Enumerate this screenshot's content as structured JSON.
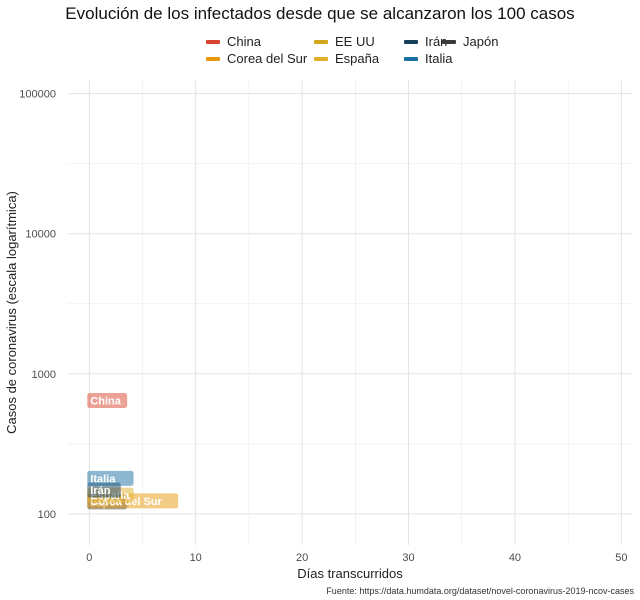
{
  "title": "Evolución de los infectados desde que se alcanzaron los 100 casos",
  "caption": "Fuente: https://data.humdata.org/dataset/novel-coronavirus-2019-ncov-cases",
  "colors": {
    "China": "#d9432f",
    "Corea del Sur": "#e69a0b",
    "EE UU": "#d4a61a",
    "España": "#e2b02b",
    "Irán": "#17405c",
    "Italia": "#1b6fa3",
    "Japón": "#3b3b3b"
  },
  "chart_data": {
    "type": "line",
    "title": "Evolución de los infectados desde que se alcanzaron los 100 casos",
    "xlabel": "Días transcurridos",
    "ylabel": "Casos de coronavirus (escala logarítmica)",
    "xlim": [
      -2,
      51
    ],
    "ylim": [
      60,
      125000
    ],
    "yscale": "log",
    "x_ticks": [
      "0",
      "10",
      "20",
      "30",
      "40",
      "50"
    ],
    "y_ticks": [
      "100",
      "1000",
      "10000",
      "100000"
    ],
    "grid": true,
    "legend_position": "top",
    "series": [
      {
        "name": "China",
        "labels": [
          {
            "text": "China",
            "x": 0,
            "y": 640
          }
        ]
      },
      {
        "name": "Corea del Sur",
        "labels": [
          {
            "text": "Corea del Sur",
            "x": 0,
            "y": 123
          }
        ]
      },
      {
        "name": "EE UU",
        "labels": []
      },
      {
        "name": "España",
        "labels": [
          {
            "text": "España",
            "x": 0,
            "y": 135
          }
        ]
      },
      {
        "name": "Irán",
        "labels": [
          {
            "text": "Irán",
            "x": 0,
            "y": 147
          }
        ]
      },
      {
        "name": "Italia",
        "labels": [
          {
            "text": "Italia",
            "x": 0,
            "y": 178
          }
        ]
      },
      {
        "name": "Japón",
        "labels": [
          {
            "text": "Japón",
            "x": 0,
            "y": 121
          }
        ]
      }
    ]
  }
}
